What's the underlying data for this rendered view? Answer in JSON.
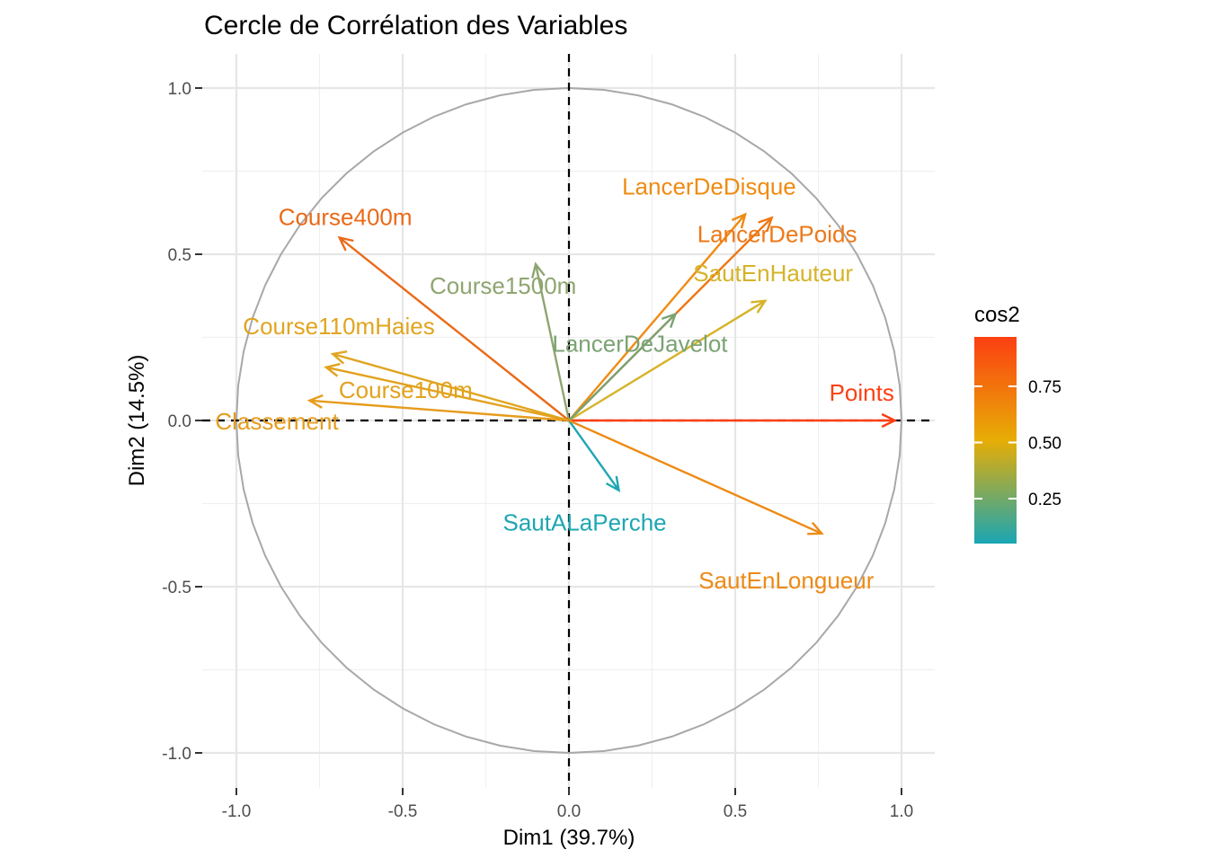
{
  "chart_data": {
    "type": "scatter",
    "subtype": "pca-correlation-circle",
    "title": "Cercle de Corrélation des Variables",
    "xlabel": "Dim1 (39.7%)",
    "ylabel": "Dim2 (14.5%)",
    "xlim": [
      -1.05,
      1.1
    ],
    "ylim": [
      -1.1,
      1.1
    ],
    "x_ticks": [
      -1.0,
      -0.5,
      0.0,
      0.5,
      1.0
    ],
    "x_tick_labels": [
      "-1.0",
      "-0.5",
      "0.0",
      "0.5",
      "1.0"
    ],
    "y_ticks": [
      -1.0,
      -0.5,
      0.0,
      0.5,
      1.0
    ],
    "y_tick_labels": [
      "-1.0",
      "-0.5",
      "0.0",
      "0.5",
      "1.0"
    ],
    "grid": true,
    "reference_lines": [
      "x=0",
      "y=0"
    ],
    "unit_circle": true,
    "series": [
      {
        "name": "Points",
        "x": 0.98,
        "y": 0.0,
        "cos2": 0.96,
        "color": "#fc3f12"
      },
      {
        "name": "LancerDeDisque",
        "x": 0.53,
        "y": 0.62,
        "cos2": 0.67,
        "color": "#ef8b12"
      },
      {
        "name": "LancerDePoids",
        "x": 0.61,
        "y": 0.61,
        "cos2": 0.74,
        "color": "#ee7816"
      },
      {
        "name": "SautEnHauteur",
        "x": 0.59,
        "y": 0.36,
        "cos2": 0.48,
        "color": "#d6b328"
      },
      {
        "name": "LancerDeJavelot",
        "x": 0.32,
        "y": 0.32,
        "cos2": 0.2,
        "color": "#7ba374"
      },
      {
        "name": "Course1500m",
        "x": -0.1,
        "y": 0.47,
        "cos2": 0.23,
        "color": "#8fa570"
      },
      {
        "name": "Course400m",
        "x": -0.69,
        "y": 0.55,
        "cos2": 0.78,
        "color": "#ea6a19"
      },
      {
        "name": "Course110mHaies",
        "x": -0.71,
        "y": 0.2,
        "cos2": 0.55,
        "color": "#e0a51f"
      },
      {
        "name": "Course100m",
        "x": -0.73,
        "y": 0.16,
        "cos2": 0.56,
        "color": "#e2a21e"
      },
      {
        "name": "Classement",
        "x": -0.78,
        "y": 0.06,
        "cos2": 0.61,
        "color": "#e69c1c"
      },
      {
        "name": "SautALaPerche",
        "x": 0.15,
        "y": -0.21,
        "cos2": 0.07,
        "color": "#1ea6b2"
      },
      {
        "name": "SautEnLongueur",
        "x": 0.76,
        "y": -0.34,
        "cos2": 0.69,
        "color": "#ee8a14"
      }
    ],
    "legend": {
      "title": "cos2",
      "type": "gradient",
      "position": "right",
      "range": [
        0.05,
        0.97
      ],
      "ticks": [
        0.25,
        0.5,
        0.75
      ],
      "tick_labels": [
        "0.25",
        "0.50",
        "0.75"
      ],
      "colors": [
        "#fc3f12",
        "#e7ad05",
        "#19a6b4"
      ]
    }
  }
}
